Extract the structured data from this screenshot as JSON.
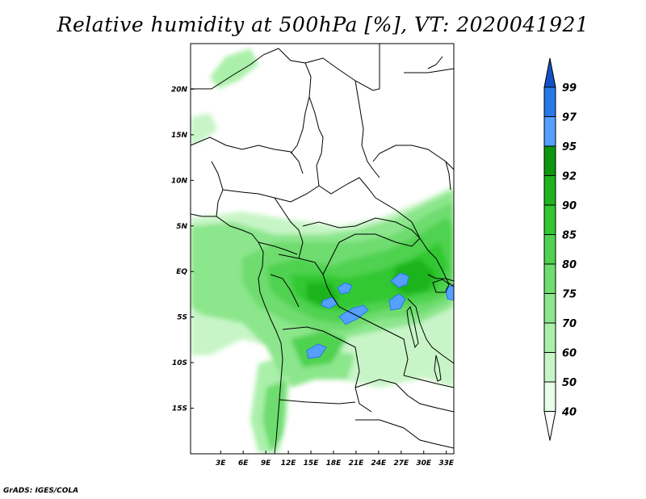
{
  "title": "Relative humidity at 500hPa [%], VT: 2020041921",
  "footer": "GrADS: IGES/COLA",
  "map": {
    "lon_range": [
      -1,
      34
    ],
    "lat_range": [
      -20,
      25
    ],
    "x_ticks": [
      {
        "v": 3,
        "label": "3E"
      },
      {
        "v": 6,
        "label": "6E"
      },
      {
        "v": 9,
        "label": "9E"
      },
      {
        "v": 12,
        "label": "12E"
      },
      {
        "v": 15,
        "label": "15E"
      },
      {
        "v": 18,
        "label": "18E"
      },
      {
        "v": 21,
        "label": "21E"
      },
      {
        "v": 24,
        "label": "24E"
      },
      {
        "v": 27,
        "label": "27E"
      },
      {
        "v": 30,
        "label": "30E"
      },
      {
        "v": 33,
        "label": "33E"
      }
    ],
    "y_ticks": [
      {
        "v": 20,
        "label": "20N"
      },
      {
        "v": 15,
        "label": "15N"
      },
      {
        "v": 10,
        "label": "10N"
      },
      {
        "v": 5,
        "label": "5N"
      },
      {
        "v": 0,
        "label": "EQ"
      },
      {
        "v": -5,
        "label": "5S"
      },
      {
        "v": -10,
        "label": "10S"
      },
      {
        "v": -15,
        "label": "15S"
      }
    ]
  },
  "colorbar": {
    "levels": [
      "40",
      "50",
      "60",
      "70",
      "75",
      "80",
      "85",
      "90",
      "92",
      "95",
      "97",
      "99"
    ],
    "colors": [
      "#ffffff",
      "#e6ffe6",
      "#c8f5c8",
      "#aaf0aa",
      "#8ce68c",
      "#6edc6e",
      "#50d250",
      "#32c832",
      "#1eb41e",
      "#0f960f",
      "#55a0ff",
      "#2878e6",
      "#1450c8"
    ]
  }
}
